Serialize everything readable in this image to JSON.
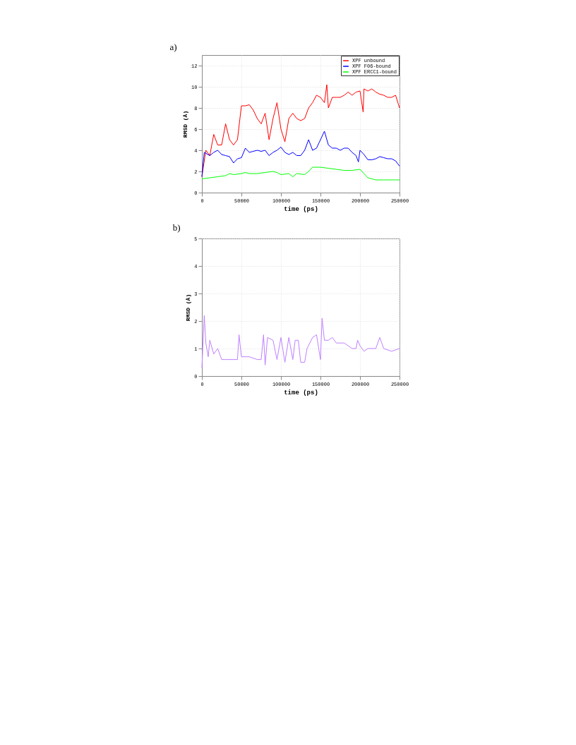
{
  "chart_data": [
    {
      "type": "line",
      "title": "a)",
      "xlabel": "time (ps)",
      "ylabel": "RMSD (Å)",
      "xlim": [
        0,
        250000
      ],
      "ylim": [
        0,
        13
      ],
      "xticks": [
        0,
        50000,
        100000,
        150000,
        200000,
        250000
      ],
      "yticks": [
        0,
        2,
        4,
        6,
        8,
        10,
        12
      ],
      "grid": true,
      "legend": "top right",
      "series": [
        {
          "name": "XPF unbound",
          "color": "#ff0000",
          "x": [
            0,
            5000,
            10000,
            15000,
            20000,
            25000,
            30000,
            35000,
            40000,
            45000,
            50000,
            55000,
            60000,
            65000,
            70000,
            75000,
            80000,
            85000,
            90000,
            95000,
            100000,
            105000,
            110000,
            115000,
            120000,
            125000,
            130000,
            135000,
            140000,
            145000,
            150000,
            155000,
            158000,
            160000,
            165000,
            170000,
            175000,
            180000,
            185000,
            190000,
            195000,
            200000,
            204000,
            205000,
            210000,
            215000,
            220000,
            225000,
            230000,
            235000,
            240000,
            245000,
            250000
          ],
          "values": [
            1.5,
            4,
            3.5,
            5.5,
            4.5,
            4.5,
            6.5,
            5,
            4.5,
            5,
            8.2,
            8.2,
            8.3,
            7.8,
            7,
            6.5,
            7.5,
            5,
            7,
            8.5,
            6,
            4.8,
            7,
            7.5,
            7,
            6.8,
            7,
            8,
            8.5,
            9.2,
            9,
            8.5,
            10.2,
            8,
            9,
            9,
            9,
            9.2,
            9.5,
            9.2,
            9.5,
            9.6,
            7.6,
            9.8,
            9.6,
            9.8,
            9.5,
            9.3,
            9.2,
            9,
            9,
            9.2,
            8
          ]
        },
        {
          "name": "XPF F06-bound",
          "color": "#0000ff",
          "x": [
            0,
            3000,
            10000,
            15000,
            20000,
            25000,
            30000,
            35000,
            40000,
            45000,
            50000,
            55000,
            60000,
            65000,
            70000,
            75000,
            80000,
            85000,
            90000,
            95000,
            100000,
            105000,
            110000,
            115000,
            120000,
            125000,
            130000,
            135000,
            140000,
            145000,
            150000,
            155000,
            160000,
            165000,
            170000,
            175000,
            180000,
            185000,
            190000,
            195000,
            198000,
            200000,
            205000,
            210000,
            215000,
            220000,
            225000,
            230000,
            235000,
            240000,
            245000,
            250000
          ],
          "values": [
            1.5,
            3.8,
            3.5,
            3.8,
            4,
            3.6,
            3.5,
            3.4,
            2.8,
            3.2,
            3.3,
            4.2,
            3.8,
            3.9,
            4,
            3.9,
            4,
            3.5,
            3.8,
            4,
            4.3,
            3.8,
            3.6,
            3.8,
            3.5,
            3.5,
            4,
            5,
            4,
            4.2,
            5,
            5.8,
            4.5,
            4.2,
            4.2,
            4,
            4.2,
            4.2,
            3.8,
            3.5,
            2.9,
            4,
            3.6,
            3.1,
            3.1,
            3.2,
            3.4,
            3.3,
            3.2,
            3.2,
            3,
            2.5
          ]
        },
        {
          "name": "XPF ERCC1-bound",
          "color": "#00ff00",
          "x": [
            0,
            10000,
            20000,
            30000,
            35000,
            40000,
            50000,
            55000,
            60000,
            70000,
            80000,
            90000,
            95000,
            100000,
            110000,
            115000,
            120000,
            130000,
            135000,
            140000,
            150000,
            160000,
            170000,
            180000,
            190000,
            200000,
            205000,
            210000,
            220000,
            230000,
            240000,
            250000
          ],
          "values": [
            1.3,
            1.4,
            1.5,
            1.6,
            1.8,
            1.7,
            1.8,
            1.9,
            1.8,
            1.8,
            1.9,
            2,
            1.9,
            1.7,
            1.8,
            1.5,
            1.8,
            1.7,
            2,
            2.4,
            2.4,
            2.3,
            2.2,
            2.1,
            2.1,
            2.2,
            1.8,
            1.4,
            1.2,
            1.2,
            1.2,
            1.2
          ]
        }
      ]
    },
    {
      "type": "line",
      "title": "b)",
      "xlabel": "time (ps)",
      "ylabel": "RMSD (Å)",
      "xlim": [
        0,
        250000
      ],
      "ylim": [
        0,
        5
      ],
      "xticks": [
        0,
        50000,
        100000,
        150000,
        200000,
        250000
      ],
      "yticks": [
        0,
        1,
        2,
        3,
        4,
        5
      ],
      "grid": true,
      "series": [
        {
          "color": "#bf80ff",
          "x": [
            0,
            3000,
            5000,
            8000,
            10000,
            15000,
            20000,
            25000,
            30000,
            40000,
            45000,
            47000,
            50000,
            60000,
            70000,
            75000,
            78000,
            80000,
            83000,
            90000,
            95000,
            100000,
            105000,
            110000,
            115000,
            118000,
            122000,
            125000,
            130000,
            133000,
            140000,
            145000,
            150000,
            152000,
            155000,
            160000,
            165000,
            170000,
            180000,
            190000,
            195000,
            197000,
            200000,
            205000,
            210000,
            220000,
            225000,
            230000,
            240000,
            250000
          ],
          "values": [
            0.3,
            2.2,
            1.2,
            0.7,
            1.3,
            0.8,
            1,
            0.6,
            0.6,
            0.6,
            0.6,
            1.5,
            0.7,
            0.7,
            0.6,
            0.6,
            1.5,
            0.4,
            1.4,
            1.3,
            0.6,
            1.4,
            0.5,
            1.4,
            0.6,
            1.3,
            1.3,
            0.5,
            0.5,
            1,
            1.4,
            1.5,
            0.6,
            2.1,
            1.3,
            1.3,
            1.4,
            1.2,
            1.2,
            1,
            1,
            1.3,
            1.1,
            0.9,
            1,
            1,
            1.4,
            1,
            0.9,
            1
          ]
        }
      ]
    }
  ]
}
